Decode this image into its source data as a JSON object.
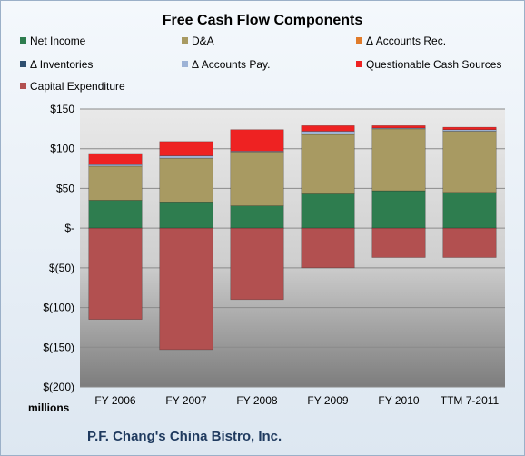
{
  "chart_data": {
    "type": "bar",
    "stacked": true,
    "title": "Free Cash Flow Components",
    "categories": [
      "FY 2006",
      "FY 2007",
      "FY 2008",
      "FY 2009",
      "FY 2010",
      "TTM 7-2011"
    ],
    "ylim": [
      -200,
      150
    ],
    "yticks": [
      150,
      100,
      50,
      0,
      -50,
      -100,
      -150,
      -200
    ],
    "ytick_labels": [
      "$150",
      "$100",
      "$50",
      "$-",
      "$(50)",
      "$(100)",
      "$(150)",
      "$(200)"
    ],
    "units_label": "millions",
    "grid": true,
    "legend_position": "top",
    "series": [
      {
        "name": "Net Income",
        "color": "#2e7d4f",
        "values": [
          35,
          33,
          28,
          43,
          47,
          45
        ]
      },
      {
        "name": "D&A",
        "color": "#a89a62",
        "values": [
          43,
          55,
          68,
          75,
          78,
          77
        ]
      },
      {
        "name": "Δ Accounts Rec.",
        "color": "#e07b2a",
        "values": [
          0,
          0,
          0,
          0,
          0,
          0
        ]
      },
      {
        "name": "Δ Inventories",
        "color": "#2f4f6f",
        "values": [
          0,
          0,
          0,
          0,
          0,
          0
        ]
      },
      {
        "name": "Δ Accounts Pay.",
        "color": "#9db3d6",
        "values": [
          2,
          3,
          1,
          4,
          1,
          2
        ]
      },
      {
        "name": "Questionable Cash Sources",
        "color": "#ee2222",
        "values": [
          14,
          18,
          27,
          7,
          3,
          3
        ]
      },
      {
        "name": "Capital Expenditure",
        "color": "#b25050",
        "values": [
          -115,
          -153,
          -90,
          -50,
          -37,
          -37
        ]
      }
    ]
  },
  "company": "P.F. Chang's China Bistro, Inc."
}
